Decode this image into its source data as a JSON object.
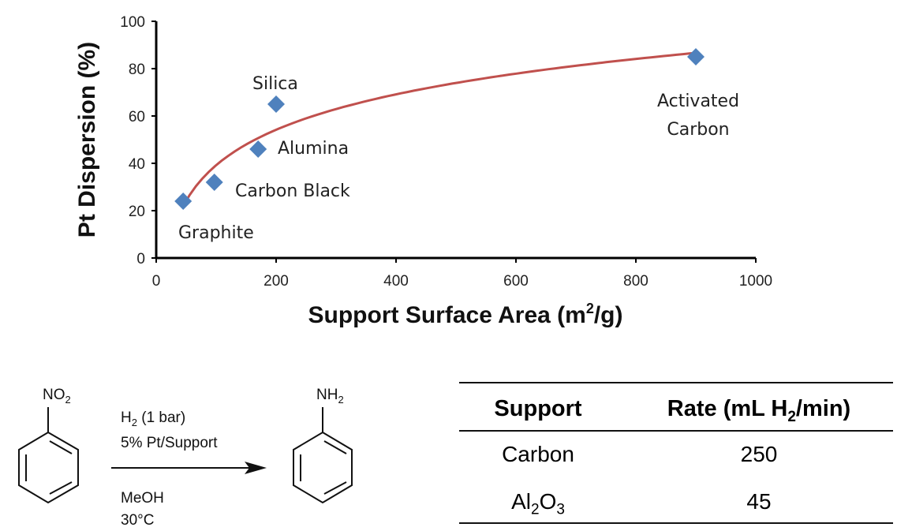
{
  "chart_data": {
    "type": "scatter",
    "title": "",
    "xlabel": "Support Surface Area (m²/g)",
    "xlabel_base": "Support Surface Area (m",
    "xlabel_sup": "2",
    "xlabel_end": "/g)",
    "ylabel": "Pt Dispersion (%)",
    "xlim": [
      0,
      1000
    ],
    "ylim": [
      0,
      100
    ],
    "xticks": [
      "0",
      "200",
      "400",
      "600",
      "800",
      "1000"
    ],
    "yticks": [
      "0",
      "20",
      "40",
      "60",
      "80",
      "100"
    ],
    "grid": false,
    "legend": "none",
    "marker": "diamond",
    "marker_color": "#4F81BD",
    "trendline_color": "#C0504D",
    "trendline_type": "logarithmic",
    "series": [
      {
        "name": "Pt Dispersion",
        "points": [
          {
            "label": "Graphite",
            "x": 45,
            "y": 24
          },
          {
            "label": "Carbon Black",
            "x": 97,
            "y": 32
          },
          {
            "label": "Alumina",
            "x": 170,
            "y": 46
          },
          {
            "label": "Silica",
            "x": 200,
            "y": 65
          },
          {
            "label": "Activated Carbon",
            "x": 900,
            "y": 85
          }
        ]
      }
    ],
    "annotations": [
      "Silica",
      "Alumina",
      "Carbon Black",
      "Graphite",
      "Activated",
      "Carbon"
    ]
  },
  "scheme": {
    "reactant_group": {
      "base": "NO",
      "sub": "2"
    },
    "product_group": {
      "base": "NH",
      "sub": "2"
    },
    "conditions_above": [
      {
        "base": "H",
        "sub": "2",
        "rest": " (1 bar)"
      },
      {
        "text": "5% Pt/Support"
      }
    ],
    "conditions_below": [
      {
        "text": "MeOH"
      },
      {
        "text": "30°C"
      }
    ]
  },
  "table": {
    "headers": {
      "support": "Support",
      "rate_base": "Rate (mL H",
      "rate_sub": "2",
      "rate_end": "/min)"
    },
    "rows": [
      {
        "support": "Carbon",
        "rate": "250"
      },
      {
        "support_base": "Al",
        "support_sub1": "2",
        "support_mid": "O",
        "support_sub2": "3",
        "rate": "45"
      }
    ]
  }
}
